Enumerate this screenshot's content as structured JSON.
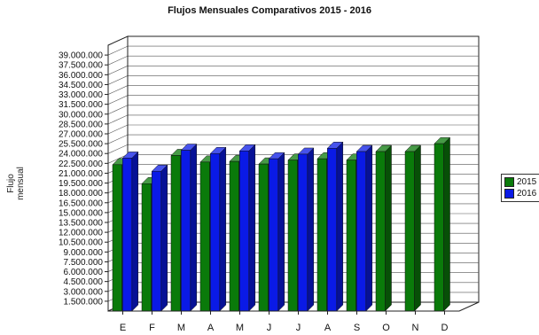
{
  "chart_data": {
    "type": "bar",
    "title": "Flujos Mensuales Comparativos 2015 - 2016",
    "xlabel": "",
    "ylabel": "Flujo mensual",
    "ylim": [
      0,
      40500000
    ],
    "y_ticks": [
      "1.500.000",
      "3.000.000",
      "4.500.000",
      "6.000.000",
      "7.500.000",
      "9.000.000",
      "10.500.000",
      "12.000.000",
      "13.500.000",
      "15.000.000",
      "16.500.000",
      "18.000.000",
      "19.500.000",
      "21.000.000",
      "22.500.000",
      "24.000.000",
      "25.500.000",
      "27.000.000",
      "28.500.000",
      "30.000.000",
      "31.500.000",
      "33.000.000",
      "34.500.000",
      "36.000.000",
      "37.500.000",
      "39.000.000"
    ],
    "y_tick_values": [
      1500000,
      3000000,
      4500000,
      6000000,
      7500000,
      9000000,
      10500000,
      12000000,
      13500000,
      15000000,
      16500000,
      18000000,
      19500000,
      21000000,
      22500000,
      24000000,
      25500000,
      27000000,
      28500000,
      30000000,
      31500000,
      33000000,
      34500000,
      36000000,
      37500000,
      39000000
    ],
    "categories": [
      "E",
      "F",
      "M",
      "A",
      "M",
      "J",
      "J",
      "A",
      "S",
      "O",
      "N",
      "D"
    ],
    "series": [
      {
        "name": "2015",
        "color": "#0a7a0a",
        "values": [
          22300000,
          19400000,
          23700000,
          22700000,
          22800000,
          22400000,
          23000000,
          23200000,
          23000000,
          24300000,
          24300000,
          25500000
        ]
      },
      {
        "name": "2016",
        "color": "#0a1ae6",
        "values": [
          23300000,
          21300000,
          24500000,
          24000000,
          24400000,
          23200000,
          23900000,
          24800000,
          24300000,
          null,
          null,
          null
        ]
      }
    ],
    "grid": true,
    "legend_position": "right"
  }
}
